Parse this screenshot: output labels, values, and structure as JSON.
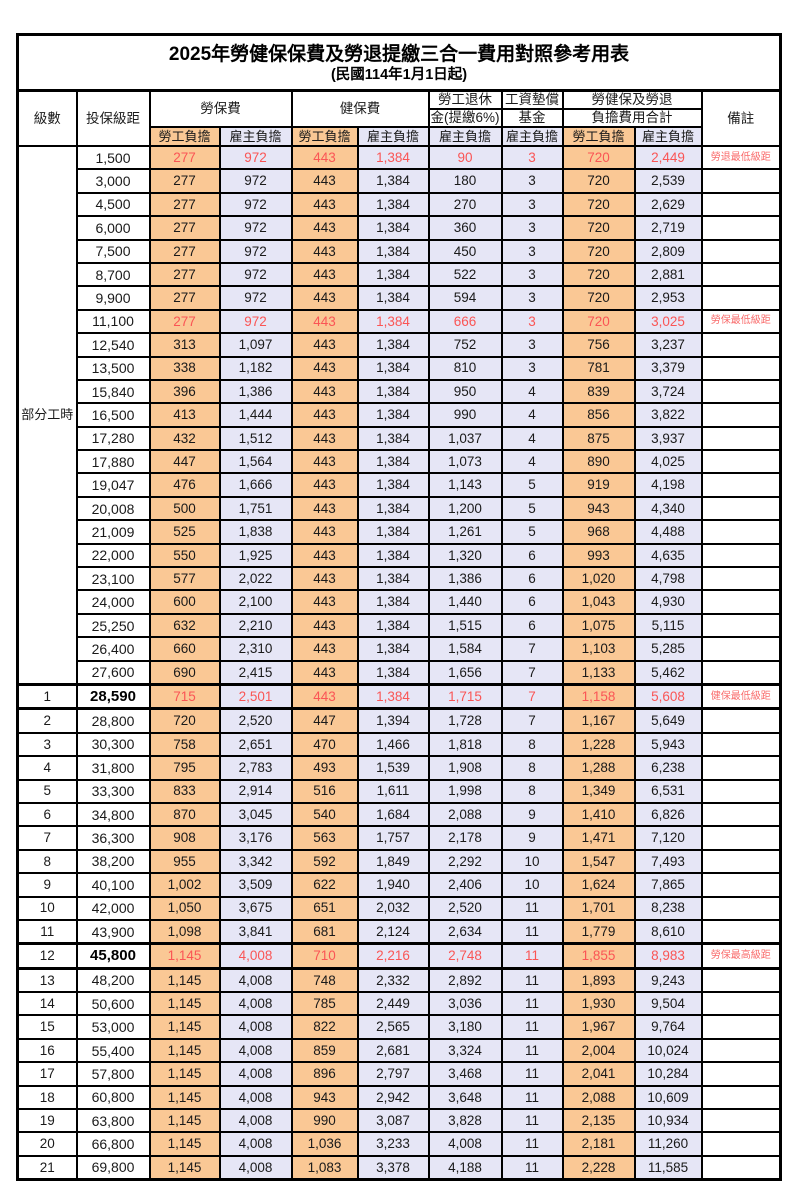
{
  "title": "2025年勞健保保費及勞退提繳三合一費用對照參考用表",
  "subtitle": "(民國114年1月1日起)",
  "colors": {
    "employee_column_bg": "#FAC895",
    "employer_column_bg": "#E6E6F6",
    "highlight_text": "#FA5555",
    "remark_text": "#F96B6B",
    "border": "#000000"
  },
  "header": {
    "level": "級數",
    "bracket": "投保級距",
    "labor_insurance": "勞保費",
    "health_insurance": "健保費",
    "pension_line1": "勞工退休",
    "pension_line2": "金(提繳6%)",
    "wage_fund_line1": "工資墊償",
    "wage_fund_line2": "基金",
    "total_line1": "勞健保及勞退",
    "total_line2": "負擔費用合計",
    "remark": "備註",
    "employee": "勞工負擔",
    "employer": "雇主負擔"
  },
  "part_time_label": "部分工時",
  "rows": [
    {
      "level": "",
      "bracket": "1,500",
      "values": [
        "277",
        "972",
        "443",
        "1,384",
        "90",
        "3",
        "720",
        "2,449"
      ],
      "remark": "勞退最低級距",
      "red": true,
      "bold": false,
      "thick": false
    },
    {
      "level": "",
      "bracket": "3,000",
      "values": [
        "277",
        "972",
        "443",
        "1,384",
        "180",
        "3",
        "720",
        "2,539"
      ],
      "remark": "",
      "red": false,
      "bold": false,
      "thick": false
    },
    {
      "level": "",
      "bracket": "4,500",
      "values": [
        "277",
        "972",
        "443",
        "1,384",
        "270",
        "3",
        "720",
        "2,629"
      ],
      "remark": "",
      "red": false,
      "bold": false,
      "thick": false
    },
    {
      "level": "",
      "bracket": "6,000",
      "values": [
        "277",
        "972",
        "443",
        "1,384",
        "360",
        "3",
        "720",
        "2,719"
      ],
      "remark": "",
      "red": false,
      "bold": false,
      "thick": false
    },
    {
      "level": "",
      "bracket": "7,500",
      "values": [
        "277",
        "972",
        "443",
        "1,384",
        "450",
        "3",
        "720",
        "2,809"
      ],
      "remark": "",
      "red": false,
      "bold": false,
      "thick": false
    },
    {
      "level": "",
      "bracket": "8,700",
      "values": [
        "277",
        "972",
        "443",
        "1,384",
        "522",
        "3",
        "720",
        "2,881"
      ],
      "remark": "",
      "red": false,
      "bold": false,
      "thick": false
    },
    {
      "level": "",
      "bracket": "9,900",
      "values": [
        "277",
        "972",
        "443",
        "1,384",
        "594",
        "3",
        "720",
        "2,953"
      ],
      "remark": "",
      "red": false,
      "bold": false,
      "thick": false
    },
    {
      "level": "",
      "bracket": "11,100",
      "values": [
        "277",
        "972",
        "443",
        "1,384",
        "666",
        "3",
        "720",
        "3,025"
      ],
      "remark": "勞保最低級距",
      "red": true,
      "bold": false,
      "thick": false
    },
    {
      "level": "",
      "bracket": "12,540",
      "values": [
        "313",
        "1,097",
        "443",
        "1,384",
        "752",
        "3",
        "756",
        "3,237"
      ],
      "remark": "",
      "red": false,
      "bold": false,
      "thick": false
    },
    {
      "level": "",
      "bracket": "13,500",
      "values": [
        "338",
        "1,182",
        "443",
        "1,384",
        "810",
        "3",
        "781",
        "3,379"
      ],
      "remark": "",
      "red": false,
      "bold": false,
      "thick": false
    },
    {
      "level": "",
      "bracket": "15,840",
      "values": [
        "396",
        "1,386",
        "443",
        "1,384",
        "950",
        "4",
        "839",
        "3,724"
      ],
      "remark": "",
      "red": false,
      "bold": false,
      "thick": false
    },
    {
      "level": "",
      "bracket": "16,500",
      "values": [
        "413",
        "1,444",
        "443",
        "1,384",
        "990",
        "4",
        "856",
        "3,822"
      ],
      "remark": "",
      "red": false,
      "bold": false,
      "thick": false
    },
    {
      "level": "",
      "bracket": "17,280",
      "values": [
        "432",
        "1,512",
        "443",
        "1,384",
        "1,037",
        "4",
        "875",
        "3,937"
      ],
      "remark": "",
      "red": false,
      "bold": false,
      "thick": false
    },
    {
      "level": "",
      "bracket": "17,880",
      "values": [
        "447",
        "1,564",
        "443",
        "1,384",
        "1,073",
        "4",
        "890",
        "4,025"
      ],
      "remark": "",
      "red": false,
      "bold": false,
      "thick": false
    },
    {
      "level": "",
      "bracket": "19,047",
      "values": [
        "476",
        "1,666",
        "443",
        "1,384",
        "1,143",
        "5",
        "919",
        "4,198"
      ],
      "remark": "",
      "red": false,
      "bold": false,
      "thick": false
    },
    {
      "level": "",
      "bracket": "20,008",
      "values": [
        "500",
        "1,751",
        "443",
        "1,384",
        "1,200",
        "5",
        "943",
        "4,340"
      ],
      "remark": "",
      "red": false,
      "bold": false,
      "thick": false
    },
    {
      "level": "",
      "bracket": "21,009",
      "values": [
        "525",
        "1,838",
        "443",
        "1,384",
        "1,261",
        "5",
        "968",
        "4,488"
      ],
      "remark": "",
      "red": false,
      "bold": false,
      "thick": false
    },
    {
      "level": "",
      "bracket": "22,000",
      "values": [
        "550",
        "1,925",
        "443",
        "1,384",
        "1,320",
        "6",
        "993",
        "4,635"
      ],
      "remark": "",
      "red": false,
      "bold": false,
      "thick": false
    },
    {
      "level": "",
      "bracket": "23,100",
      "values": [
        "577",
        "2,022",
        "443",
        "1,384",
        "1,386",
        "6",
        "1,020",
        "4,798"
      ],
      "remark": "",
      "red": false,
      "bold": false,
      "thick": false
    },
    {
      "level": "",
      "bracket": "24,000",
      "values": [
        "600",
        "2,100",
        "443",
        "1,384",
        "1,440",
        "6",
        "1,043",
        "4,930"
      ],
      "remark": "",
      "red": false,
      "bold": false,
      "thick": false
    },
    {
      "level": "",
      "bracket": "25,250",
      "values": [
        "632",
        "2,210",
        "443",
        "1,384",
        "1,515",
        "6",
        "1,075",
        "5,115"
      ],
      "remark": "",
      "red": false,
      "bold": false,
      "thick": false
    },
    {
      "level": "",
      "bracket": "26,400",
      "values": [
        "660",
        "2,310",
        "443",
        "1,384",
        "1,584",
        "7",
        "1,103",
        "5,285"
      ],
      "remark": "",
      "red": false,
      "bold": false,
      "thick": false
    },
    {
      "level": "",
      "bracket": "27,600",
      "values": [
        "690",
        "2,415",
        "443",
        "1,384",
        "1,656",
        "7",
        "1,133",
        "5,462"
      ],
      "remark": "",
      "red": false,
      "bold": false,
      "thick": false
    },
    {
      "level": "1",
      "bracket": "28,590",
      "values": [
        "715",
        "2,501",
        "443",
        "1,384",
        "1,715",
        "7",
        "1,158",
        "5,608"
      ],
      "remark": "健保最低級距",
      "red": true,
      "bold": true,
      "thick": true
    },
    {
      "level": "2",
      "bracket": "28,800",
      "values": [
        "720",
        "2,520",
        "447",
        "1,394",
        "1,728",
        "7",
        "1,167",
        "5,649"
      ],
      "remark": "",
      "red": false,
      "bold": false,
      "thick": false
    },
    {
      "level": "3",
      "bracket": "30,300",
      "values": [
        "758",
        "2,651",
        "470",
        "1,466",
        "1,818",
        "8",
        "1,228",
        "5,943"
      ],
      "remark": "",
      "red": false,
      "bold": false,
      "thick": false
    },
    {
      "level": "4",
      "bracket": "31,800",
      "values": [
        "795",
        "2,783",
        "493",
        "1,539",
        "1,908",
        "8",
        "1,288",
        "6,238"
      ],
      "remark": "",
      "red": false,
      "bold": false,
      "thick": false
    },
    {
      "level": "5",
      "bracket": "33,300",
      "values": [
        "833",
        "2,914",
        "516",
        "1,611",
        "1,998",
        "8",
        "1,349",
        "6,531"
      ],
      "remark": "",
      "red": false,
      "bold": false,
      "thick": false
    },
    {
      "level": "6",
      "bracket": "34,800",
      "values": [
        "870",
        "3,045",
        "540",
        "1,684",
        "2,088",
        "9",
        "1,410",
        "6,826"
      ],
      "remark": "",
      "red": false,
      "bold": false,
      "thick": false
    },
    {
      "level": "7",
      "bracket": "36,300",
      "values": [
        "908",
        "3,176",
        "563",
        "1,757",
        "2,178",
        "9",
        "1,471",
        "7,120"
      ],
      "remark": "",
      "red": false,
      "bold": false,
      "thick": false
    },
    {
      "level": "8",
      "bracket": "38,200",
      "values": [
        "955",
        "3,342",
        "592",
        "1,849",
        "2,292",
        "10",
        "1,547",
        "7,493"
      ],
      "remark": "",
      "red": false,
      "bold": false,
      "thick": false
    },
    {
      "level": "9",
      "bracket": "40,100",
      "values": [
        "1,002",
        "3,509",
        "622",
        "1,940",
        "2,406",
        "10",
        "1,624",
        "7,865"
      ],
      "remark": "",
      "red": false,
      "bold": false,
      "thick": false
    },
    {
      "level": "10",
      "bracket": "42,000",
      "values": [
        "1,050",
        "3,675",
        "651",
        "2,032",
        "2,520",
        "11",
        "1,701",
        "8,238"
      ],
      "remark": "",
      "red": false,
      "bold": false,
      "thick": false
    },
    {
      "level": "11",
      "bracket": "43,900",
      "values": [
        "1,098",
        "3,841",
        "681",
        "2,124",
        "2,634",
        "11",
        "1,779",
        "8,610"
      ],
      "remark": "",
      "red": false,
      "bold": false,
      "thick": false
    },
    {
      "level": "12",
      "bracket": "45,800",
      "values": [
        "1,145",
        "4,008",
        "710",
        "2,216",
        "2,748",
        "11",
        "1,855",
        "8,983"
      ],
      "remark": "勞保最高級距",
      "red": true,
      "bold": true,
      "thick": true
    },
    {
      "level": "13",
      "bracket": "48,200",
      "values": [
        "1,145",
        "4,008",
        "748",
        "2,332",
        "2,892",
        "11",
        "1,893",
        "9,243"
      ],
      "remark": "",
      "red": false,
      "bold": false,
      "thick": false
    },
    {
      "level": "14",
      "bracket": "50,600",
      "values": [
        "1,145",
        "4,008",
        "785",
        "2,449",
        "3,036",
        "11",
        "1,930",
        "9,504"
      ],
      "remark": "",
      "red": false,
      "bold": false,
      "thick": false
    },
    {
      "level": "15",
      "bracket": "53,000",
      "values": [
        "1,145",
        "4,008",
        "822",
        "2,565",
        "3,180",
        "11",
        "1,967",
        "9,764"
      ],
      "remark": "",
      "red": false,
      "bold": false,
      "thick": false
    },
    {
      "level": "16",
      "bracket": "55,400",
      "values": [
        "1,145",
        "4,008",
        "859",
        "2,681",
        "3,324",
        "11",
        "2,004",
        "10,024"
      ],
      "remark": "",
      "red": false,
      "bold": false,
      "thick": false
    },
    {
      "level": "17",
      "bracket": "57,800",
      "values": [
        "1,145",
        "4,008",
        "896",
        "2,797",
        "3,468",
        "11",
        "2,041",
        "10,284"
      ],
      "remark": "",
      "red": false,
      "bold": false,
      "thick": false
    },
    {
      "level": "18",
      "bracket": "60,800",
      "values": [
        "1,145",
        "4,008",
        "943",
        "2,942",
        "3,648",
        "11",
        "2,088",
        "10,609"
      ],
      "remark": "",
      "red": false,
      "bold": false,
      "thick": false
    },
    {
      "level": "19",
      "bracket": "63,800",
      "values": [
        "1,145",
        "4,008",
        "990",
        "3,087",
        "3,828",
        "11",
        "2,135",
        "10,934"
      ],
      "remark": "",
      "red": false,
      "bold": false,
      "thick": false
    },
    {
      "level": "20",
      "bracket": "66,800",
      "values": [
        "1,145",
        "4,008",
        "1,036",
        "3,233",
        "4,008",
        "11",
        "2,181",
        "11,260"
      ],
      "remark": "",
      "red": false,
      "bold": false,
      "thick": false
    },
    {
      "level": "21",
      "bracket": "69,800",
      "values": [
        "1,145",
        "4,008",
        "1,083",
        "3,378",
        "4,188",
        "11",
        "2,228",
        "11,585"
      ],
      "remark": "",
      "red": false,
      "bold": false,
      "thick": false
    }
  ],
  "value_column_styles": [
    "emp",
    "er",
    "emp",
    "er",
    "er",
    "er",
    "emp",
    "er"
  ]
}
